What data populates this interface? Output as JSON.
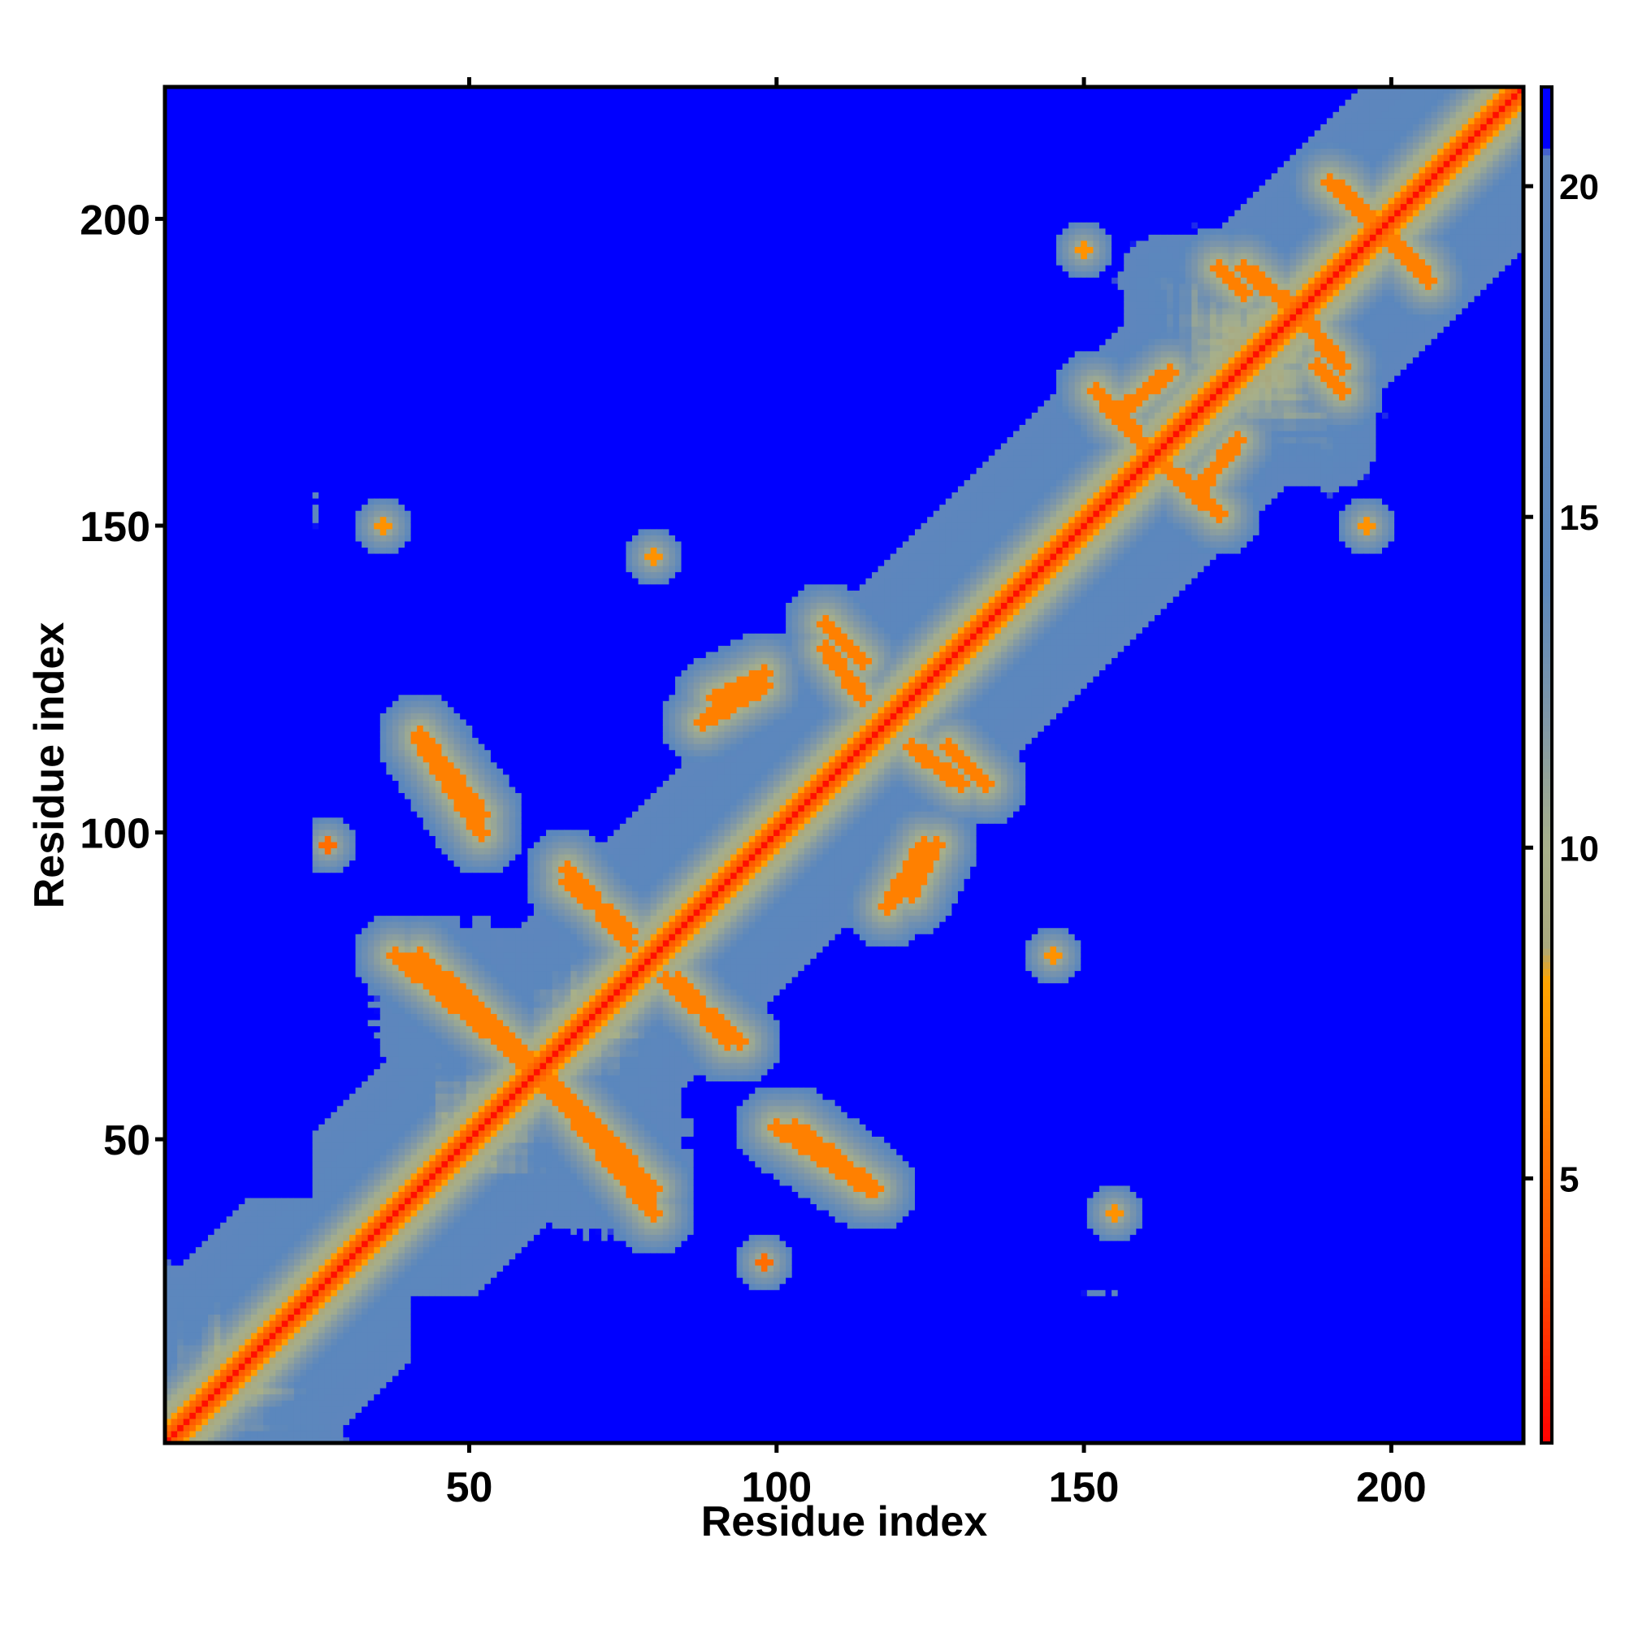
{
  "chart_data": {
    "type": "heatmap",
    "description_of_values": "pairwise residue distance matrix",
    "xlabel": "Residue index",
    "ylabel": "Residue index",
    "x_range": [
      1,
      221
    ],
    "y_range": [
      1,
      221
    ],
    "x_ticks": [
      50,
      100,
      150,
      200
    ],
    "y_ticks": [
      50,
      100,
      150,
      200
    ],
    "colorbar": {
      "range": [
        1,
        21.5
      ],
      "ticks": [
        5,
        10,
        15,
        20
      ],
      "stops": [
        {
          "value": 1,
          "color": "#ff0000"
        },
        {
          "value": 4,
          "color": "#ff5a00"
        },
        {
          "value": 8,
          "color": "#ffa500"
        },
        {
          "value": 8.5,
          "color": "#a9a87d"
        },
        {
          "value": 10,
          "color": "#a8b08a"
        },
        {
          "value": 12,
          "color": "#7f97a8"
        },
        {
          "value": 14,
          "color": "#5b87bd"
        },
        {
          "value": 20.5,
          "color": "#5e86bd"
        },
        {
          "value": 20.6,
          "color": "#0000ff"
        },
        {
          "value": 21.5,
          "color": "#0000ff"
        }
      ]
    },
    "cutoff_distance": 20.5,
    "features": {
      "diagonal": {
        "value": 1.5
      },
      "contact_bands": [
        {
          "from": [
            42,
            80
          ],
          "to": [
            63,
            60
          ],
          "value": 6
        },
        {
          "from": [
            62,
            60
          ],
          "to": [
            80,
            38
          ],
          "value": 6
        },
        {
          "from": [
            42,
            116
          ],
          "to": [
            52,
            103
          ],
          "value": 6
        },
        {
          "from": [
            66,
            92
          ],
          "to": [
            76,
            84
          ],
          "value": 6
        },
        {
          "from": [
            82,
            76
          ],
          "to": [
            94,
            66
          ],
          "value": 6
        },
        {
          "from": [
            100,
            52
          ],
          "to": [
            115,
            42
          ],
          "value": 6
        },
        {
          "from": [
            88,
            118
          ],
          "to": [
            98,
            124
          ],
          "value": 6
        },
        {
          "from": [
            108,
            134
          ],
          "to": [
            114,
            128
          ],
          "value": 6
        },
        {
          "from": [
            122,
            114
          ],
          "to": [
            130,
            108
          ],
          "value": 6
        },
        {
          "from": [
            122,
            90
          ],
          "to": [
            126,
            98
          ],
          "value": 6
        },
        {
          "from": [
            132,
            132
          ],
          "to": [
            150,
            150
          ],
          "value": 5
        },
        {
          "from": [
            155,
            168
          ],
          "to": [
            164,
            175
          ],
          "value": 6
        },
        {
          "from": [
            163,
            160
          ],
          "to": [
            172,
            152
          ],
          "value": 6
        },
        {
          "from": [
            184,
            186
          ],
          "to": [
            192,
            176
          ],
          "value": 6
        },
        {
          "from": [
            192,
            205
          ],
          "to": [
            206,
            190
          ],
          "value": 6
        },
        {
          "from": [
            172,
            192
          ],
          "to": [
            176,
            188
          ],
          "value": 6
        }
      ],
      "contact_spots": [
        {
          "x": 27,
          "y": 98,
          "value": 5
        },
        {
          "x": 98,
          "y": 30,
          "value": 5
        },
        {
          "x": 155,
          "y": 38,
          "value": 7
        },
        {
          "x": 80,
          "y": 145,
          "value": 7
        },
        {
          "x": 36,
          "y": 150,
          "value": 7
        },
        {
          "x": 145,
          "y": 80,
          "value": 7
        },
        {
          "x": 150,
          "y": 195,
          "value": 7
        },
        {
          "x": 196,
          "y": 150,
          "value": 7
        }
      ]
    }
  }
}
